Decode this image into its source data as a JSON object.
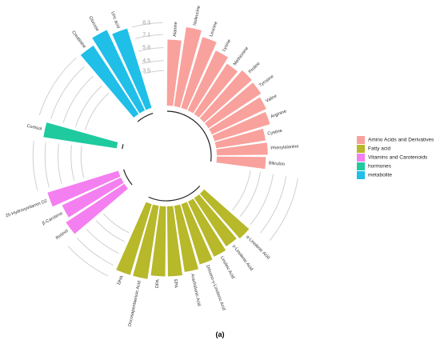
{
  "chart_data": {
    "type": "bar",
    "polar": true,
    "caption": "(a)",
    "ylim": [
      0,
      9
    ],
    "yticks": [
      3.5,
      4.5,
      5.8,
      7.1,
      8.3
    ],
    "legend": "right",
    "series": [
      {
        "name": "Amino Acids and Derivatives",
        "color": "#f9a19c",
        "categories": [
          "Alanine",
          "Isoleucine",
          "Leucine",
          "Lysine",
          "Methionine",
          "Proline",
          "Tyrosine",
          "Valine",
          "Arginine",
          "Cystine",
          "Phenylalanine",
          "Bilirubin"
        ],
        "values": [
          6.6,
          8.0,
          7.4,
          6.6,
          6.0,
          6.4,
          6.3,
          6.0,
          5.8,
          5.0,
          5.1,
          4.9
        ]
      },
      {
        "name": "Fatty acid",
        "color": "#b7b82a",
        "categories": [
          "α-Linolenic Acid",
          "γ-Linolenic Acid",
          "Linoleic Acid",
          "Dihomo-γ-Linolenic Acid",
          "Arachidonic Acid",
          "EPA",
          "DPA",
          "Docosapentaenoic Acid",
          "DHA"
        ],
        "values": [
          6.0,
          5.8,
          6.1,
          6.3,
          6.7,
          7.0,
          7.0,
          7.4,
          7.4
        ]
      },
      {
        "name": "Vitamins and Carotenoids",
        "color": "#f47ff0",
        "categories": [
          "Retinol",
          "β-Carotene",
          "25-Hydroxyvitamin D2"
        ],
        "values": [
          7.0,
          6.5,
          7.4
        ]
      },
      {
        "name": "hormones",
        "color": "#1fca9f",
        "categories": [
          "Cortisol"
        ],
        "values": [
          7.4
        ]
      },
      {
        "name": "metabolite",
        "color": "#1fbfe8",
        "categories": [
          "Creatinine",
          "Glucose",
          "Uric acid"
        ],
        "values": [
          8.2,
          8.9,
          8.3
        ]
      }
    ]
  }
}
